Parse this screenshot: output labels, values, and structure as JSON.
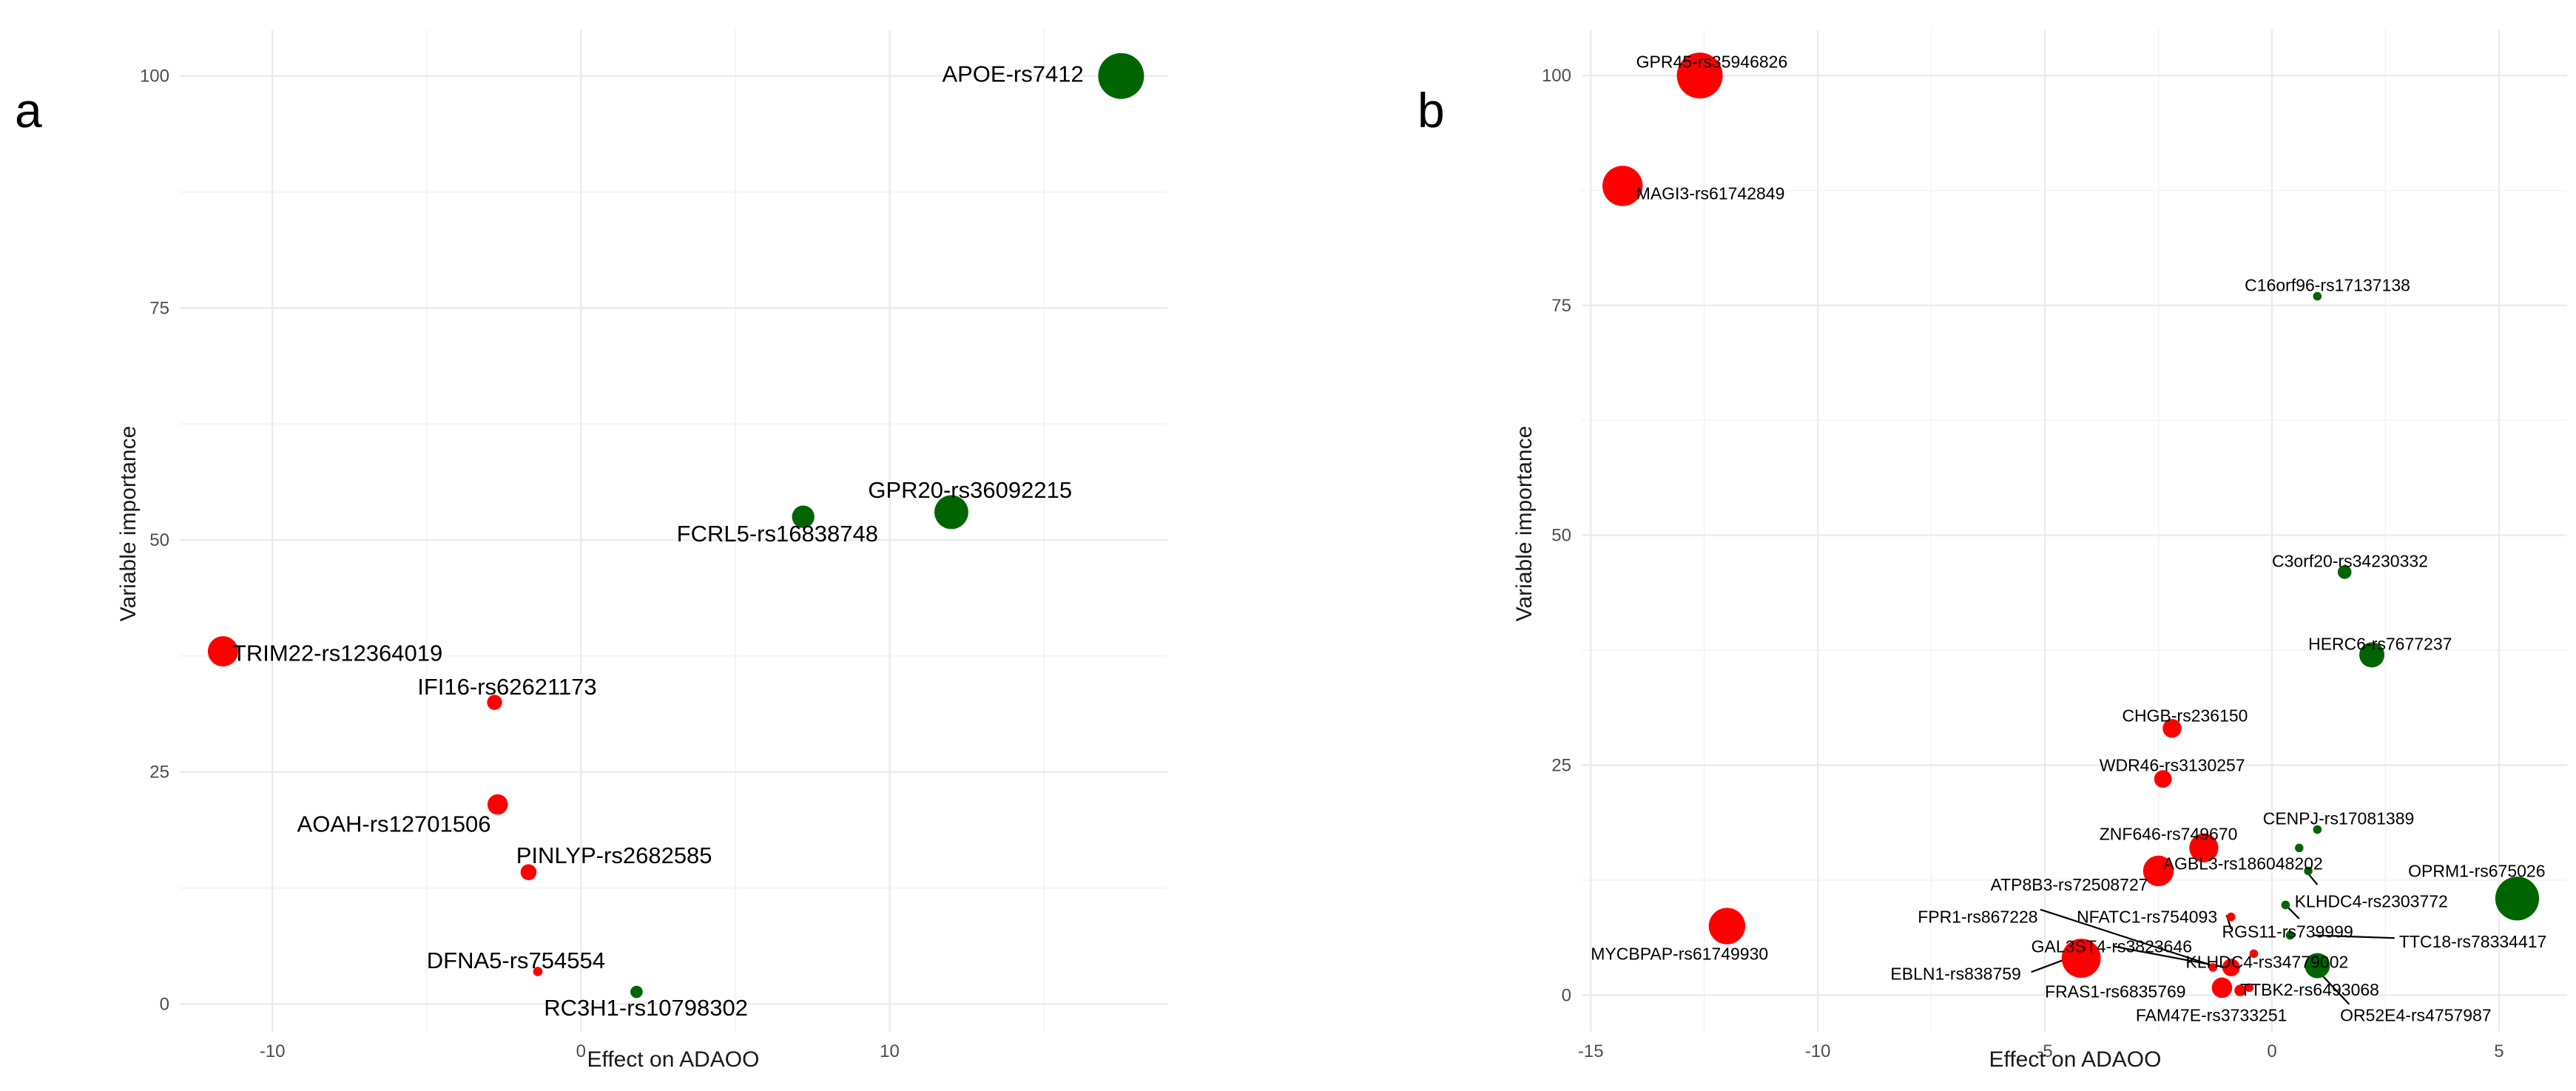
{
  "colors": {
    "negative": "#ff0000",
    "positive": "#006400",
    "grid": "#ebebeb"
  },
  "chart_data": [
    {
      "type": "scatter",
      "panel_label": "a",
      "xlabel": "Effect on ADAOO",
      "ylabel": "Variable importance",
      "xlim": [
        -13,
        19
      ],
      "ylim": [
        -3,
        105
      ],
      "xticks": [
        -10,
        0,
        10
      ],
      "yticks": [
        0,
        25,
        50,
        75,
        100
      ],
      "xtick_labels": [
        "-10",
        "0",
        "10"
      ],
      "ytick_labels": [
        "0",
        "25",
        "50",
        "75",
        "100"
      ],
      "points": [
        {
          "label": "APOE-rs7412",
          "x": 17.5,
          "y": 100,
          "size": 100,
          "sign": "positive",
          "label_x": 11.7,
          "label_y": 100,
          "anchor": "start"
        },
        {
          "label": "GPR20-rs36092215",
          "x": 12.0,
          "y": 53,
          "size": 50,
          "sign": "positive",
          "label_x": 9.3,
          "label_y": 55.2,
          "anchor": "start"
        },
        {
          "label": "FCRL5-rs16838748",
          "x": 7.2,
          "y": 52.5,
          "size": 18,
          "sign": "positive",
          "label_x": 3.1,
          "label_y": 50.5,
          "anchor": "start"
        },
        {
          "label": "TRIM22-rs12364019",
          "x": -11.6,
          "y": 38,
          "size": 38,
          "sign": "negative",
          "label_x": -11.3,
          "label_y": 37.6,
          "anchor": "start"
        },
        {
          "label": "IFI16-rs62621173",
          "x": -2.8,
          "y": 32.5,
          "size": 6,
          "sign": "negative",
          "label_x": -5.3,
          "label_y": 34,
          "anchor": "start"
        },
        {
          "label": "AOAH-rs12701506",
          "x": -2.7,
          "y": 21.5,
          "size": 14,
          "sign": "negative",
          "label_x": -9.2,
          "label_y": 19.2,
          "anchor": "start"
        },
        {
          "label": "PINLYP-rs2682585",
          "x": -1.7,
          "y": 14.2,
          "size": 7,
          "sign": "negative",
          "label_x": -2.1,
          "label_y": 15.8,
          "anchor": "start"
        },
        {
          "label": "DFNA5-rs754554",
          "x": -1.4,
          "y": 3.5,
          "size": 1,
          "sign": "negative",
          "label_x": -5.0,
          "label_y": 4.5,
          "anchor": "start"
        },
        {
          "label": "RC3H1-rs10798302",
          "x": 1.8,
          "y": 1.3,
          "size": 3,
          "sign": "positive",
          "label_x": -1.2,
          "label_y": -0.6,
          "anchor": "start"
        }
      ]
    },
    {
      "type": "scatter",
      "panel_label": "b",
      "xlabel": "Effect on ADAOO",
      "ylabel": "Variable importance",
      "xlim": [
        -15.2,
        6.5
      ],
      "ylim": [
        -4,
        105
      ],
      "xticks": [
        -15,
        -10,
        -5,
        0,
        5
      ],
      "yticks": [
        0,
        25,
        50,
        75,
        100
      ],
      "xtick_labels": [
        "-15",
        "-10",
        "-5",
        "0",
        "5"
      ],
      "ytick_labels": [
        "0",
        "25",
        "50",
        "75",
        "100"
      ],
      "points": [
        {
          "label": "GPR45-rs35946826",
          "x": -12.6,
          "y": 100,
          "size": 100,
          "sign": "negative",
          "label_x": -14.0,
          "label_y": 101.5,
          "anchor": "start"
        },
        {
          "label": "MAGI3-rs61742849",
          "x": -14.3,
          "y": 88,
          "size": 75,
          "sign": "negative",
          "label_x": -14.0,
          "label_y": 87.2,
          "anchor": "start"
        },
        {
          "label": "C16orf96-rs17137138",
          "x": 1.0,
          "y": 76,
          "size": 1,
          "sign": "positive",
          "label_x": -0.6,
          "label_y": 77.2,
          "anchor": "start"
        },
        {
          "label": "C3orf20-rs34230332",
          "x": 1.6,
          "y": 46,
          "size": 5,
          "sign": "positive",
          "label_x": 0.0,
          "label_y": 47.2,
          "anchor": "start"
        },
        {
          "label": "HERC6-rs7677237",
          "x": 2.2,
          "y": 37,
          "size": 25,
          "sign": "positive",
          "label_x": 0.8,
          "label_y": 38.2,
          "anchor": "start"
        },
        {
          "label": "CHGB-rs236150",
          "x": -2.2,
          "y": 29,
          "size": 12,
          "sign": "negative",
          "label_x": -3.3,
          "label_y": 30.4,
          "anchor": "start"
        },
        {
          "label": "WDR46-rs3130257",
          "x": -2.4,
          "y": 23.5,
          "size": 10,
          "sign": "negative",
          "label_x": -3.8,
          "label_y": 25,
          "anchor": "start"
        },
        {
          "label": "CENPJ-rs17081389",
          "x": 1.0,
          "y": 18,
          "size": 1,
          "sign": "positive",
          "label_x": -0.2,
          "label_y": 19.2,
          "anchor": "start"
        },
        {
          "label": "ZNF646-rs749670",
          "x": -1.5,
          "y": 16,
          "size": 35,
          "sign": "negative",
          "label_x": -3.8,
          "label_y": 17.5,
          "anchor": "start"
        },
        {
          "label": "AGBL3-rs186048202",
          "x": 0.6,
          "y": 16,
          "size": 1,
          "sign": "positive",
          "label_x": -2.4,
          "label_y": 14.3,
          "anchor": "start"
        },
        {
          "label": "OPRM1-rs675026",
          "x": 5.4,
          "y": 10.5,
          "size": 90,
          "sign": "positive",
          "label_x": 3.0,
          "label_y": 13.5,
          "anchor": "start"
        },
        {
          "label": "ATP8B3-rs72508727",
          "x": -2.5,
          "y": 13.5,
          "size": 40,
          "sign": "negative",
          "label_x": -6.2,
          "label_y": 12,
          "anchor": "start"
        },
        {
          "label": "KLHDC4-rs2303772",
          "x": 0.8,
          "y": 13.5,
          "size": 1,
          "sign": "positive",
          "label_x": 0.5,
          "label_y": 10.2,
          "anchor": "start",
          "line_to": [
            0.8,
            13.2
          ],
          "line_from": [
            1.0,
            12.0
          ]
        },
        {
          "label": "NFATC1-rs754093",
          "x": -0.9,
          "y": 8.5,
          "size": 1,
          "sign": "negative",
          "label_x": -4.3,
          "label_y": 8.5,
          "anchor": "start",
          "line_to": [
            -0.9,
            7.2
          ],
          "line_from": [
            -1.0,
            8.7
          ]
        },
        {
          "label": "FPR1-rs867228",
          "x": -1.3,
          "y": 3.0,
          "size": 1,
          "sign": "negative",
          "label_x": -7.8,
          "label_y": 8.5,
          "anchor": "start",
          "line_to": [
            -1.3,
            3.2
          ],
          "line_from": [
            -5.1,
            9.3
          ]
        },
        {
          "label": "RGS11-rs739999",
          "x": 0.3,
          "y": 9.8,
          "size": 1,
          "sign": "positive",
          "label_x": -1.1,
          "label_y": 6.9,
          "anchor": "start",
          "line_to": [
            0.3,
            9.8
          ],
          "line_from": [
            0.6,
            8.3
          ]
        },
        {
          "label": "MYCBPAP-rs61749930",
          "x": -12.0,
          "y": 7.5,
          "size": 60,
          "sign": "negative",
          "label_x": -15.0,
          "label_y": 4.5,
          "anchor": "start"
        },
        {
          "label": "GAL3ST4-rs3823646",
          "x": -0.9,
          "y": 3.0,
          "size": 10,
          "sign": "negative",
          "label_x": -5.3,
          "label_y": 5.3,
          "anchor": "start",
          "line_to": [
            -1.0,
            3.0
          ],
          "line_from": [
            -3.5,
            5.3
          ]
        },
        {
          "label": "TTC18-rs78334417",
          "x": 0.4,
          "y": 6.5,
          "size": 1,
          "sign": "positive",
          "label_x": 2.8,
          "label_y": 5.8,
          "anchor": "start",
          "line_to": [
            0.9,
            6.5
          ],
          "line_from": [
            2.7,
            6.2
          ]
        },
        {
          "label": "KLHDC4-rs34779002",
          "x": -0.4,
          "y": 4.5,
          "size": 1,
          "sign": "negative",
          "label_x": -1.9,
          "label_y": 3.6,
          "anchor": "start"
        },
        {
          "label": "EBLN1-rs838759",
          "x": -4.2,
          "y": 4.0,
          "size": 70,
          "sign": "negative",
          "label_x": -8.4,
          "label_y": 2.3,
          "anchor": "start",
          "line_to": [
            -4.6,
            3.8
          ],
          "line_from": [
            -5.3,
            2.5
          ]
        },
        {
          "label": "FRAS1-rs6835769",
          "x": -1.1,
          "y": 0.8,
          "size": 15,
          "sign": "negative",
          "label_x": -5.0,
          "label_y": 0.4,
          "anchor": "start"
        },
        {
          "label": "TTBK2-rs6493068",
          "x": 1.0,
          "y": 3.2,
          "size": 25,
          "sign": "positive",
          "label_x": -0.7,
          "label_y": 0.6,
          "anchor": "start"
        },
        {
          "label": "FAM47E-rs3733251",
          "x": -0.7,
          "y": 0.5,
          "size": 3,
          "sign": "negative",
          "label_x": -3.0,
          "label_y": -2.2,
          "anchor": "start"
        },
        {
          "label": "OR52E4-rs4757987",
          "x": -0.5,
          "y": 0.8,
          "size": 1,
          "sign": "negative",
          "label_x": 1.5,
          "label_y": -2.2,
          "anchor": "start",
          "line_to": [
            1.0,
            2.7
          ],
          "line_from": [
            1.7,
            -1.0
          ]
        }
      ]
    }
  ]
}
